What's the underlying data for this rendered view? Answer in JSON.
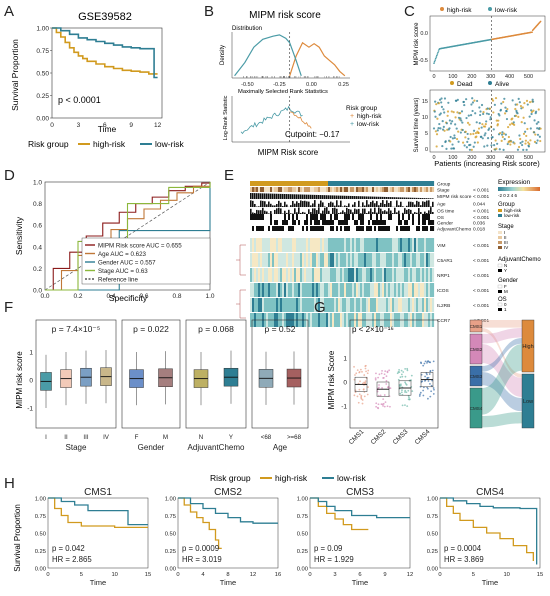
{
  "panel_letters": [
    "A",
    "B",
    "C",
    "D",
    "E",
    "F",
    "G",
    "H"
  ],
  "colors": {
    "high": "#D19A1E",
    "low": "#2E7E93",
    "teal": "#4A9BA6",
    "orange": "#DD8A3C"
  },
  "chart_data": [
    {
      "id": "A",
      "type": "line",
      "title": "GSE39582",
      "xlabel": "Time",
      "ylabel": "Survival Proportion",
      "xticks": [
        "0",
        "3",
        "6",
        "9",
        "12"
      ],
      "yticks": [
        "0.00",
        "0.25",
        "0.50",
        "0.75",
        "1.00"
      ],
      "xlim": [
        0,
        12.5
      ],
      "ylim": [
        0,
        1
      ],
      "annotation": "p < 0.0001",
      "legend_title": "Risk group",
      "series": [
        {
          "name": "high-risk",
          "color": "#D19A1E",
          "points": [
            [
              0,
              1
            ],
            [
              0.5,
              0.95
            ],
            [
              1,
              0.9
            ],
            [
              1.5,
              0.84
            ],
            [
              2,
              0.78
            ],
            [
              2.5,
              0.73
            ],
            [
              3,
              0.69
            ],
            [
              3.5,
              0.66
            ],
            [
              4,
              0.63
            ],
            [
              5,
              0.6
            ],
            [
              6,
              0.57
            ],
            [
              7,
              0.55
            ],
            [
              8,
              0.53
            ],
            [
              9,
              0.52
            ],
            [
              10,
              0.51
            ],
            [
              11,
              0.49
            ],
            [
              12,
              0.49
            ]
          ]
        },
        {
          "name": "low-risk",
          "color": "#2E7E93",
          "points": [
            [
              0,
              1
            ],
            [
              1,
              0.97
            ],
            [
              2,
              0.93
            ],
            [
              3,
              0.89
            ],
            [
              4,
              0.87
            ],
            [
              5,
              0.85
            ],
            [
              6,
              0.83
            ],
            [
              7,
              0.81
            ],
            [
              8,
              0.79
            ],
            [
              9,
              0.78
            ],
            [
              10,
              0.77
            ],
            [
              11.6,
              0.77
            ],
            [
              11.6,
              0.45
            ],
            [
              12,
              0.45
            ]
          ]
        }
      ]
    },
    {
      "id": "B",
      "type": "line",
      "title": "MIPM risk score",
      "top_subtitle": "Distribution",
      "top_ylabel": "Density",
      "bottom_subtitle": "Maximally Selected Rank Statistics",
      "bottom_ylabel": "Log-Rank Statistic",
      "xlabel": "MIPM Risk score",
      "xticks": [
        "-0.50",
        "-0.25",
        "0.00",
        "0.25"
      ],
      "xlim": [
        -0.62,
        0.3
      ],
      "cutpoint": -0.17,
      "cutpoint_label": "Cutpoint: −0.17",
      "legend_title": "Risk group",
      "series": [
        {
          "name": "high-risk",
          "color": "#DD8A3C",
          "x": [
            -0.17,
            -0.12,
            -0.07,
            -0.02,
            0.02,
            0.06,
            0.1,
            0.14,
            0.18,
            0.22,
            0.26
          ],
          "y": [
            0.05,
            0.5,
            0.8,
            0.7,
            0.78,
            0.7,
            0.5,
            0.4,
            0.3,
            0.15,
            0.05
          ]
        },
        {
          "name": "low-risk",
          "color": "#4A9BA6",
          "x": [
            -0.6,
            -0.52,
            -0.45,
            -0.38,
            -0.3,
            -0.25,
            -0.2,
            -0.17,
            -0.12,
            -0.08
          ],
          "y": [
            0.05,
            0.35,
            0.7,
            0.88,
            0.95,
            0.98,
            0.9,
            0.8,
            0.4,
            0.05
          ]
        }
      ]
    },
    {
      "id": "C",
      "type": "scatter",
      "top_ylabel": "MIPM risk score",
      "top_legend": [
        {
          "name": "high-risk",
          "color": "#DD8A3C"
        },
        {
          "name": "low-risk",
          "color": "#4A9BA6"
        }
      ],
      "bottom_ylabel": "Survival time (years)",
      "bottom_legend": [
        {
          "name": "Dead",
          "color": "#D19A1E"
        },
        {
          "name": "Alive",
          "color": "#2E7E93"
        }
      ],
      "xlabel": "Patients (increasing Risk score)",
      "xticks": [
        "0",
        "100",
        "200",
        "300",
        "400",
        "500"
      ],
      "top_yticks": [
        "-0.5",
        "0.0"
      ],
      "bottom_yticks": [
        "0",
        "5",
        "10",
        "15"
      ],
      "cutoff_patient": 305,
      "n": 566
    },
    {
      "id": "D",
      "type": "line",
      "xlabel": "Specificity",
      "ylabel": "Sensitivity",
      "xticks": [
        "0.0",
        "0.2",
        "0.4",
        "0.6",
        "0.8",
        "1.0"
      ],
      "yticks": [
        "0.0",
        "0.2",
        "0.4",
        "0.6",
        "0.8",
        "1.0"
      ],
      "legend": [
        {
          "name": "MIPM Risk score AUC = 0.655",
          "color": "#8B1A1A"
        },
        {
          "name": "Age AUC = 0.623",
          "color": "#C07838"
        },
        {
          "name": "Gender AUC = 0.557",
          "color": "#2E7E93"
        },
        {
          "name": "Stage AUC = 0.63",
          "color": "#8CB83C"
        },
        {
          "name": "Reference line",
          "color": "#555555"
        }
      ],
      "series": [
        {
          "name": "MIPM",
          "color": "#8B1A1A",
          "x": [
            0,
            0.05,
            0.15,
            0.25,
            0.35,
            0.45,
            0.55,
            0.65,
            0.75,
            0.85,
            0.95,
            1
          ],
          "y": [
            0,
            0.2,
            0.35,
            0.5,
            0.62,
            0.72,
            0.8,
            0.86,
            0.92,
            0.96,
            0.99,
            1
          ]
        },
        {
          "name": "Age",
          "color": "#C07838",
          "x": [
            0,
            0.1,
            0.2,
            0.3,
            0.4,
            0.5,
            0.6,
            0.7,
            0.8,
            0.9,
            1
          ],
          "y": [
            0,
            0.18,
            0.32,
            0.45,
            0.56,
            0.66,
            0.75,
            0.83,
            0.9,
            0.96,
            1
          ]
        },
        {
          "name": "Gender",
          "color": "#2E7E93",
          "x": [
            0,
            0.45,
            0.45,
            1
          ],
          "y": [
            0,
            0.5,
            0.55,
            1
          ]
        },
        {
          "name": "Stage",
          "color": "#8CB83C",
          "x": [
            0,
            0.2,
            0.2,
            0.5,
            0.5,
            0.75,
            0.75,
            1
          ],
          "y": [
            0,
            0.15,
            0.45,
            0.6,
            0.8,
            0.88,
            0.95,
            1
          ]
        }
      ]
    },
    {
      "id": "E",
      "type": "heatmap",
      "rows": [
        "Group",
        "Stage",
        "MIPM risk score",
        "Age",
        "OS time",
        "OS",
        "Gender",
        "AdjuvantChemo",
        "VIM",
        "C5AR1",
        "NRP1",
        "ICOS",
        "IL2RB",
        "CCR7"
      ],
      "pvalues": [
        "",
        "< 0.001",
        "< 0.001",
        "0.044",
        "< 0.001",
        "< 0.001",
        "0.036",
        "0.018",
        "< 0.001",
        "< 0.001",
        "< 0.001",
        "< 0.001",
        "< 0.001",
        "< 0.001"
      ],
      "legend": {
        "Expression": [
          "-2",
          "0",
          "2",
          "4",
          "6"
        ],
        "Group": [
          "high-risk",
          "low-risk"
        ],
        "Stage": [
          "I",
          "II",
          "III",
          "IV"
        ],
        "AdjuvantChemo": [
          "N",
          "Y"
        ],
        "Gender": [
          "F",
          "M"
        ],
        "OS": [
          "0",
          "1"
        ]
      },
      "legend_titles": {
        "expression": "Expression",
        "group": "Group",
        "stage": "Stage",
        "chemo": "AdjuvantChemo",
        "gender": "Gender",
        "os": "OS"
      }
    },
    {
      "id": "F",
      "type": "box",
      "ylabel": "MIPM risk score",
      "yticks": [
        "-1",
        "0",
        "1"
      ],
      "groups": [
        {
          "title": "p = 7.4×10⁻⁵",
          "xlabel": "Stage",
          "categories": [
            "I",
            "II",
            "III",
            "IV"
          ],
          "colors": [
            "#4A9BA6",
            "#F2CAB8",
            "#7B9FC4",
            "#C9B78A"
          ],
          "medians": [
            -0.05,
            0.05,
            0.1,
            0.12
          ]
        },
        {
          "title": "p = 0.022",
          "xlabel": "Gender",
          "categories": [
            "F",
            "M"
          ],
          "colors": [
            "#6B8FC9",
            "#A57E7E"
          ],
          "medians": [
            0.05,
            0.08
          ]
        },
        {
          "title": "p = 0.068",
          "xlabel": "AdjuvantChemo",
          "categories": [
            "N",
            "Y"
          ],
          "colors": [
            "#BDB063",
            "#2E7E93"
          ],
          "medians": [
            0.05,
            0.1
          ]
        },
        {
          "title": "p = 0.52",
          "xlabel": "Age",
          "categories": [
            "<68",
            ">=68"
          ],
          "colors": [
            "#8FAAB8",
            "#A56060"
          ],
          "medians": [
            0.06,
            0.07
          ]
        }
      ]
    },
    {
      "id": "G",
      "type": "box",
      "ylabel": "MIPM risk Score",
      "yticks": [
        "-1",
        "0",
        "1"
      ],
      "annotation": "p < 2×10⁻¹⁶",
      "categories": [
        "CMS1",
        "CMS2",
        "CMS3",
        "CMS4"
      ],
      "colors": [
        "#E8A088",
        "#D488B8",
        "#6CB8A8",
        "#3A6FA8"
      ],
      "medians": [
        -0.1,
        -0.3,
        -0.25,
        0.1
      ],
      "sankey_left": [
        "CMS1",
        "CMS2",
        "CMS3",
        "CMS4"
      ],
      "sankey_right": [
        "High",
        "Low"
      ]
    },
    {
      "id": "H",
      "type": "line",
      "legend_title": "Risk group",
      "legend": [
        {
          "name": "high-risk",
          "color": "#D19A1E"
        },
        {
          "name": "low-risk",
          "color": "#2E7E93"
        }
      ],
      "ylabel": "Survival Proportion",
      "yticks": [
        "0.00",
        "0.25",
        "0.50",
        "0.75",
        "1.00"
      ],
      "panels": [
        {
          "title": "CMS1",
          "xticks": [
            "0",
            "5",
            "10",
            "15"
          ],
          "xmax": 15,
          "p": "p = 0.042",
          "hr": "HR = 2.865",
          "high": [
            [
              0,
              1
            ],
            [
              1,
              0.85
            ],
            [
              2,
              0.75
            ],
            [
              3,
              0.65
            ],
            [
              5,
              0.6
            ],
            [
              10,
              0.58
            ],
            [
              15,
              0.58
            ]
          ],
          "low": [
            [
              0,
              1
            ],
            [
              2,
              0.95
            ],
            [
              4,
              0.9
            ],
            [
              6,
              0.82
            ],
            [
              10,
              0.82
            ],
            [
              12,
              0.62
            ],
            [
              15,
              0.62
            ]
          ]
        },
        {
          "title": "CMS2",
          "xticks": [
            "0",
            "4",
            "8",
            "12",
            "16"
          ],
          "xmax": 16,
          "p": "p = 0.0009",
          "hr": "HR = 3.019",
          "high": [
            [
              0,
              1
            ],
            [
              1,
              0.9
            ],
            [
              2,
              0.8
            ],
            [
              3,
              0.72
            ],
            [
              4,
              0.65
            ],
            [
              5,
              0.55
            ],
            [
              6,
              0.4
            ],
            [
              6.5,
              0.28
            ],
            [
              7,
              0.28
            ]
          ],
          "low": [
            [
              0,
              1
            ],
            [
              2,
              0.92
            ],
            [
              4,
              0.85
            ],
            [
              6,
              0.78
            ],
            [
              8,
              0.72
            ],
            [
              10,
              0.66
            ],
            [
              12,
              0.64
            ],
            [
              16,
              0.64
            ]
          ]
        },
        {
          "title": "CMS3",
          "xticks": [
            "0",
            "3",
            "6",
            "9",
            "12"
          ],
          "xmax": 12,
          "p": "p = 0.09",
          "hr": "HR = 1.929",
          "high": [
            [
              0,
              1
            ],
            [
              1,
              0.88
            ],
            [
              2,
              0.78
            ],
            [
              3,
              0.7
            ],
            [
              4,
              0.62
            ],
            [
              5,
              0.55
            ],
            [
              7,
              0.55
            ]
          ],
          "low": [
            [
              0,
              1
            ],
            [
              1,
              0.95
            ],
            [
              2,
              0.88
            ],
            [
              3,
              0.82
            ],
            [
              5,
              0.75
            ],
            [
              8,
              0.72
            ],
            [
              12,
              0.72
            ]
          ]
        },
        {
          "title": "CMS4",
          "xticks": [
            "0",
            "5",
            "10",
            "15"
          ],
          "xmax": 15,
          "p": "p = 0.0004",
          "hr": "HR = 3.869",
          "high": [
            [
              0,
              1
            ],
            [
              1,
              0.88
            ],
            [
              2,
              0.78
            ],
            [
              3,
              0.68
            ],
            [
              5,
              0.58
            ],
            [
              7,
              0.5
            ],
            [
              9,
              0.42
            ],
            [
              11,
              0.32
            ],
            [
              13,
              0.22
            ],
            [
              14,
              0.1
            ]
          ],
          "low": [
            [
              0,
              1
            ],
            [
              2,
              0.96
            ],
            [
              4,
              0.92
            ],
            [
              6,
              0.88
            ],
            [
              8,
              0.86
            ],
            [
              12,
              0.85
            ],
            [
              14.5,
              0.85
            ],
            [
              14.5,
              0.05
            ]
          ]
        }
      ]
    }
  ]
}
